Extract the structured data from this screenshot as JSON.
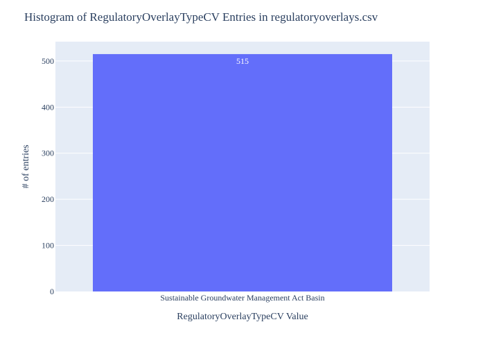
{
  "chart_data": {
    "type": "bar",
    "title": "Histogram of RegulatoryOverlayTypeCV Entries in regulatoryoverlays.csv",
    "xlabel": "RegulatoryOverlayTypeCV Value",
    "ylabel": "# of entries",
    "categories": [
      "Sustainable Groundwater Management Act Basin"
    ],
    "values": [
      515
    ],
    "data_labels": [
      "515"
    ],
    "ylim": [
      0,
      542
    ],
    "yticks": [
      0,
      100,
      200,
      300,
      400,
      500
    ],
    "grid": true,
    "legend": "none"
  },
  "colors": {
    "plot_background": "#e5ecf6",
    "bar": "#636efa",
    "gridline": "#ffffff",
    "text": "#2a3f5f"
  }
}
